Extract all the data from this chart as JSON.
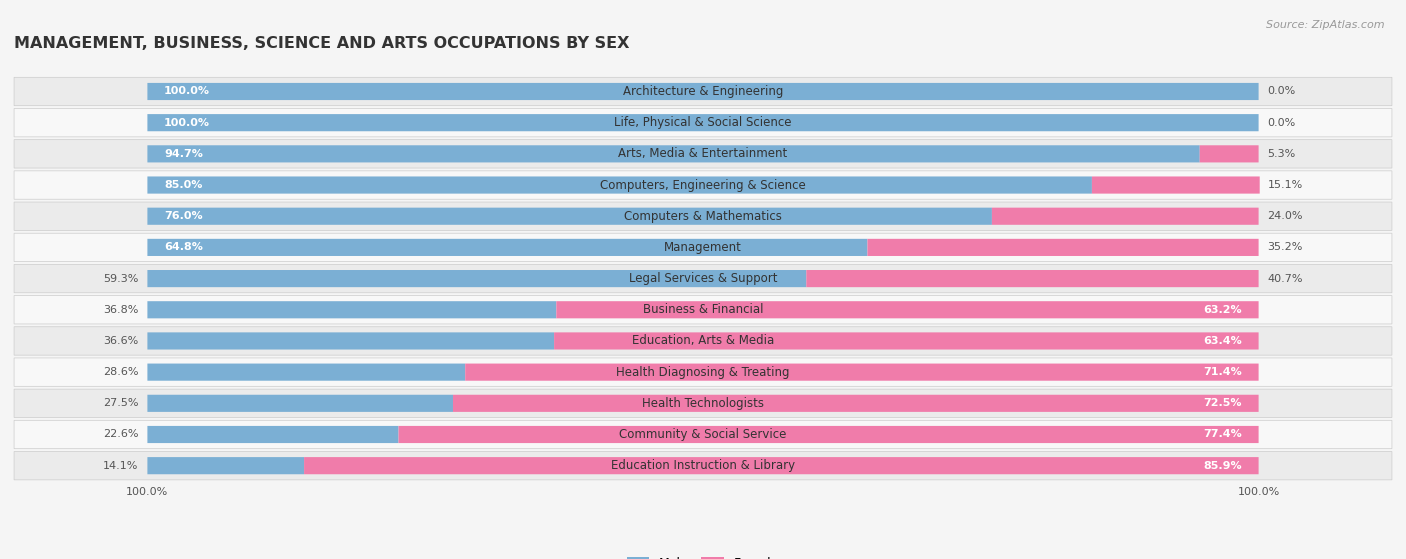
{
  "title": "MANAGEMENT, BUSINESS, SCIENCE AND ARTS OCCUPATIONS BY SEX",
  "source": "Source: ZipAtlas.com",
  "categories": [
    "Architecture & Engineering",
    "Life, Physical & Social Science",
    "Arts, Media & Entertainment",
    "Computers, Engineering & Science",
    "Computers & Mathematics",
    "Management",
    "Legal Services & Support",
    "Business & Financial",
    "Education, Arts & Media",
    "Health Diagnosing & Treating",
    "Health Technologists",
    "Community & Social Service",
    "Education Instruction & Library"
  ],
  "male_pct": [
    100.0,
    100.0,
    94.7,
    85.0,
    76.0,
    64.8,
    59.3,
    36.8,
    36.6,
    28.6,
    27.5,
    22.6,
    14.1
  ],
  "female_pct": [
    0.0,
    0.0,
    5.3,
    15.1,
    24.0,
    35.2,
    40.7,
    63.2,
    63.4,
    71.4,
    72.5,
    77.4,
    85.9
  ],
  "male_color": "#7bafd4",
  "female_color": "#f07caa",
  "background_color": "#f5f5f5",
  "row_bg_even": "#ebebeb",
  "row_bg_odd": "#f8f8f8",
  "title_fontsize": 11.5,
  "label_fontsize": 8.5,
  "pct_fontsize": 8,
  "legend_fontsize": 9,
  "source_fontsize": 8
}
